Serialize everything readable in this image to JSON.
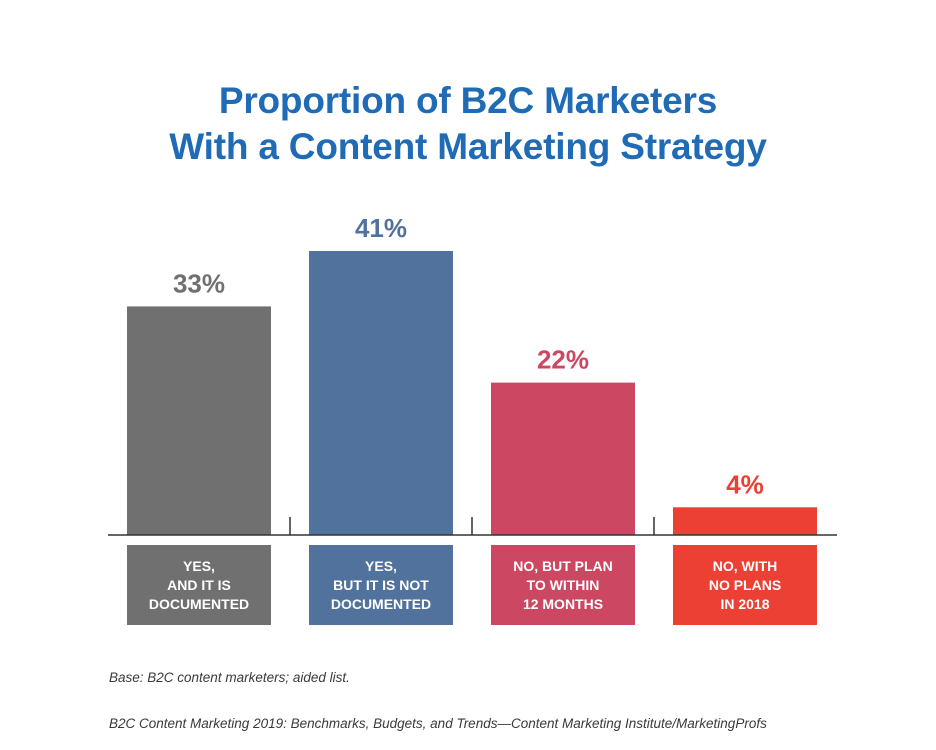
{
  "title": {
    "line1": "Proportion of B2C Marketers",
    "line2": "With a Content Marketing Strategy"
  },
  "chart_data": {
    "type": "bar",
    "title": "Proportion of B2C Marketers With a Content Marketing Strategy",
    "categories": [
      [
        "YES,",
        "AND IT IS",
        "DOCUMENTED"
      ],
      [
        "YES,",
        "BUT IT IS NOT",
        "DOCUMENTED"
      ],
      [
        "NO, BUT PLAN",
        "TO WITHIN",
        "12 MONTHS"
      ],
      [
        "NO, WITH",
        "NO PLANS",
        "IN 2018"
      ]
    ],
    "values": [
      33,
      41,
      22,
      4
    ],
    "value_labels": [
      "33%",
      "41%",
      "22%",
      "4%"
    ],
    "colors": [
      "#707070",
      "#51729c",
      "#cb4762",
      "#ed4034"
    ],
    "ylim": [
      0,
      41
    ],
    "grid": false,
    "legend": "none"
  },
  "footer": {
    "base": "Base: B2C content marketers; aided list.",
    "source": "B2C Content Marketing 2019: Benchmarks, Budgets, and Trends—Content Marketing Institute/MarketingProfs"
  }
}
